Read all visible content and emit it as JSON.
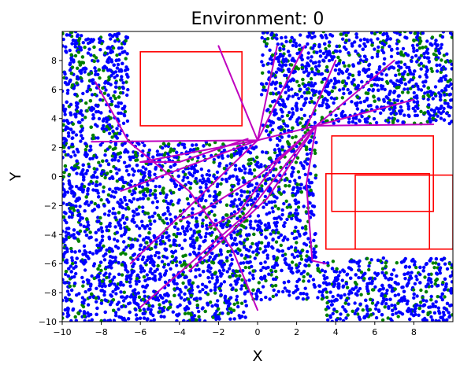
{
  "chart_data": {
    "type": "scatter",
    "title": "Environment: 0",
    "xlabel": "X",
    "ylabel": "Y",
    "xlim": [
      -10,
      10
    ],
    "ylim": [
      -10,
      10
    ],
    "x_ticks": [
      -10,
      -8,
      -6,
      -4,
      -2,
      0,
      2,
      4,
      6,
      8
    ],
    "y_ticks": [
      -10,
      -8,
      -6,
      -4,
      -2,
      0,
      2,
      4,
      6,
      8
    ],
    "grid": false,
    "legend": "none",
    "colors": {
      "point_blue": "#0000ff",
      "point_green": "#008000",
      "obstacle": "#ff0000",
      "path": "#bf00bf"
    },
    "scatter_series": [
      {
        "color": "blue",
        "approx_point_count": 4200,
        "fraction": 0.78
      },
      {
        "color": "green",
        "approx_point_count": 1200,
        "fraction": 0.22
      }
    ],
    "free_regions": [
      {
        "x": [
          -6.6,
          0.2
        ],
        "y": [
          2.4,
          10
        ]
      },
      {
        "x": [
          3.0,
          10
        ],
        "y": [
          -5.6,
          3.6
        ]
      },
      {
        "x": [
          -0.5,
          3.5
        ],
        "y": [
          -10,
          -8.5
        ]
      }
    ],
    "obstacles": [
      {
        "x0": -6.0,
        "y0": 3.5,
        "x1": -0.8,
        "y1": 8.6
      },
      {
        "x0": 3.8,
        "y0": -2.4,
        "x1": 9.0,
        "y1": 2.8
      },
      {
        "x0": 3.5,
        "y0": -5.0,
        "x1": 8.8,
        "y1": 0.2
      },
      {
        "x0": 5.0,
        "y0": -5.0,
        "x1": 10.0,
        "y1": 0.1
      }
    ],
    "paths": [
      [
        [
          -8.3,
          6.5
        ],
        [
          -6.6,
          2.4
        ],
        [
          -3.5,
          -1.0
        ],
        [
          -1.3,
          -5.0
        ],
        [
          0.0,
          -9.2
        ]
      ],
      [
        [
          -8.5,
          2.4
        ],
        [
          0.0,
          2.5
        ]
      ],
      [
        [
          0.0,
          2.5
        ],
        [
          -6.0,
          1.0
        ]
      ],
      [
        [
          -6.0,
          1.0
        ],
        [
          -4.0,
          1.0
        ],
        [
          -0.5,
          2.6
        ]
      ],
      [
        [
          0.0,
          2.5
        ],
        [
          -7.0,
          -1.0
        ]
      ],
      [
        [
          0.0,
          2.5
        ],
        [
          -6.5,
          -6.0
        ]
      ],
      [
        [
          0.0,
          2.5
        ],
        [
          1.0,
          9.0
        ]
      ],
      [
        [
          0.0,
          2.5
        ],
        [
          -2.0,
          9.0
        ]
      ],
      [
        [
          0.0,
          2.5
        ],
        [
          2.4,
          9.0
        ]
      ],
      [
        [
          0.0,
          2.5
        ],
        [
          3.0,
          3.5
        ],
        [
          8.0,
          5.3
        ]
      ],
      [
        [
          3.0,
          3.5
        ],
        [
          9.0,
          3.6
        ]
      ],
      [
        [
          3.0,
          3.5
        ],
        [
          2.5,
          -0.5
        ],
        [
          2.8,
          -5.8
        ],
        [
          3.5,
          -6.0
        ]
      ],
      [
        [
          -6.0,
          -9.0
        ],
        [
          -0.5,
          -2.5
        ],
        [
          3.0,
          3.5
        ]
      ],
      [
        [
          -4.0,
          -3.0
        ],
        [
          -3.0,
          -2.5
        ],
        [
          0.0,
          0.0
        ],
        [
          3.0,
          3.5
        ]
      ],
      [
        [
          -3.5,
          -6.5
        ],
        [
          0.5,
          -1.5
        ],
        [
          3.0,
          3.5
        ]
      ],
      [
        [
          3.0,
          3.5
        ],
        [
          7.0,
          8.0
        ]
      ],
      [
        [
          2.5,
          3.4
        ],
        [
          4.0,
          8.0
        ]
      ],
      [
        [
          -2.5,
          -3.5
        ],
        [
          -1.0,
          -2.5
        ],
        [
          1.0,
          1.0
        ],
        [
          3.0,
          3.5
        ]
      ]
    ]
  }
}
